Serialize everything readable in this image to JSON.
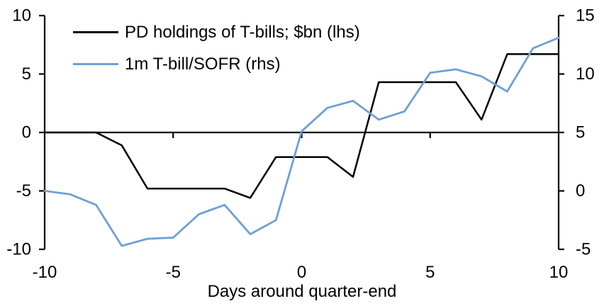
{
  "chart_data": {
    "type": "line",
    "title": "",
    "xlabel": "Days around quarter-end",
    "x_range": [
      -10,
      10
    ],
    "x_ticks": [
      -10,
      -5,
      0,
      5,
      10
    ],
    "x": [
      -10,
      -9,
      -8,
      -7,
      -6,
      -5,
      -4,
      -3,
      -2,
      -1,
      0,
      1,
      2,
      3,
      4,
      5,
      6,
      7,
      8,
      9,
      10
    ],
    "left_axis": {
      "range": [
        -10,
        10
      ],
      "ticks": [
        10,
        5,
        0,
        -5,
        -10
      ]
    },
    "right_axis": {
      "range": [
        -5,
        15
      ],
      "ticks": [
        15,
        10,
        5,
        0,
        -5
      ]
    },
    "grid": false,
    "legend_position": "top-left-inside",
    "series": [
      {
        "name": "PD holdings of T-bills; $bn (lhs)",
        "axis": "left",
        "color": "#000000",
        "values": [
          0,
          0,
          0,
          -1.1,
          -4.8,
          -4.8,
          -4.8,
          -4.8,
          -5.6,
          -2.1,
          -2.1,
          -2.1,
          -3.8,
          4.3,
          4.3,
          4.3,
          4.3,
          1.1,
          6.7,
          6.7,
          6.7
        ]
      },
      {
        "name": "1m T-bill/SOFR (rhs)",
        "axis": "right",
        "color": "#6CA0D8",
        "values": [
          0,
          -0.3,
          -1.2,
          -4.7,
          -4.1,
          -4.0,
          -2.0,
          -1.2,
          -3.7,
          -2.5,
          5.1,
          7.1,
          7.7,
          6.1,
          6.8,
          10.1,
          10.4,
          9.8,
          8.5,
          12.2,
          13.1
        ]
      }
    ]
  },
  "colors": {
    "background": "#ffffff",
    "axis": "#000000",
    "text": "#000000"
  }
}
